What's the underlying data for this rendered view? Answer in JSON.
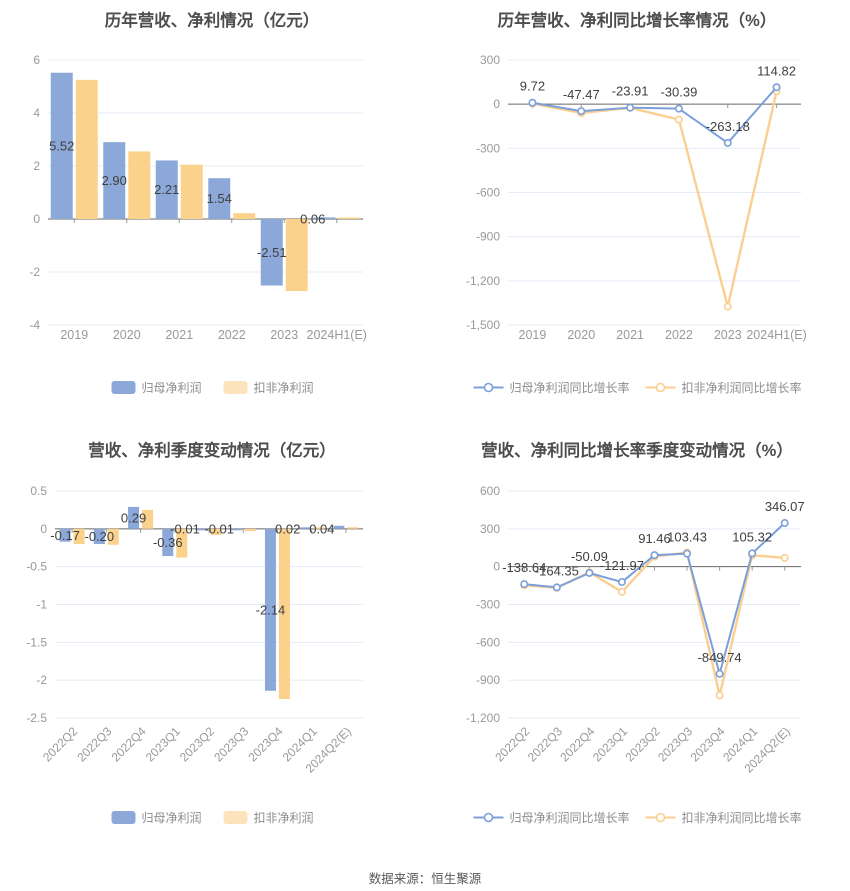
{
  "page": {
    "source_note": "数据来源：恒生聚源"
  },
  "colors": {
    "bar_blue": "#8CA8D8",
    "bar_yellow": "#FBD28C",
    "line_blue": "#7B9FDB",
    "line_yellow": "#FBCF90",
    "legend_swatch_yellow": "#FDE3BB",
    "grid": "#E5EBF6",
    "zero_axis": "#666666",
    "tick_mark": "#999999",
    "tick_text": "#999999",
    "value_text": "#404040",
    "title_text": "#4D4D4D",
    "legend_text": "#8C8C8C",
    "marker_fill": "#FFFFFF"
  },
  "chart_data": [
    {
      "type": "bar",
      "title": "历年营收、净利情况（亿元）",
      "categories": [
        "2019",
        "2020",
        "2021",
        "2022",
        "2023",
        "2024H1(E)"
      ],
      "series": [
        {
          "name": "归母净利润",
          "color_role": "bar_blue",
          "values": [
            5.52,
            2.9,
            2.21,
            1.54,
            -2.51,
            0.06
          ]
        },
        {
          "name": "扣非净利润",
          "color_role": "bar_yellow",
          "values": [
            5.25,
            2.55,
            2.05,
            0.22,
            -2.72,
            0.02
          ]
        }
      ],
      "value_labels": [
        "5.52",
        "2.90",
        "2.21",
        "1.54",
        "-2.51",
        "0.06"
      ],
      "ytick_values": [
        6,
        4,
        2,
        0,
        -2,
        -4
      ],
      "ytick_labels": [
        "6",
        "4",
        "2",
        "0",
        "-2",
        "-4"
      ],
      "ylim": [
        -4,
        6
      ],
      "x_rotated": false,
      "legend": {
        "style": "swatch",
        "items": [
          {
            "label": "归母净利润",
            "color_role": "bar_blue"
          },
          {
            "label": "扣非净利润",
            "color_role": "legend_swatch_yellow"
          }
        ]
      }
    },
    {
      "type": "line",
      "title": "历年营收、净利同比增长率情况（%）",
      "categories": [
        "2019",
        "2020",
        "2021",
        "2022",
        "2023",
        "2024H1(E)"
      ],
      "series": [
        {
          "name": "归母净利润同比增长率",
          "color_role": "line_blue",
          "values": [
            9.72,
            -47.47,
            -23.91,
            -30.39,
            -263.18,
            114.82
          ]
        },
        {
          "name": "扣非净利润同比增长率",
          "color_role": "line_yellow",
          "values": [
            4,
            -60,
            -25,
            -105,
            -1375,
            88
          ]
        }
      ],
      "value_labels": [
        "9.72",
        "-47.47",
        "-23.91",
        "-30.39",
        "-263.18",
        "114.82"
      ],
      "ytick_values": [
        300,
        0,
        -300,
        -600,
        -900,
        -1200,
        -1500
      ],
      "ytick_labels": [
        "300",
        "0",
        "-300",
        "-600",
        "-900",
        "-1,200",
        "-1,500"
      ],
      "ylim": [
        -1500,
        300
      ],
      "x_rotated": false,
      "legend": {
        "style": "line",
        "items": [
          {
            "label": "归母净利润同比增长率",
            "color_role": "line_blue"
          },
          {
            "label": "扣非净利润同比增长率",
            "color_role": "line_yellow"
          }
        ]
      }
    },
    {
      "type": "bar",
      "title": "营收、净利季度变动情况（亿元）",
      "categories": [
        "2022Q2",
        "2022Q3",
        "2022Q4",
        "2023Q1",
        "2023Q2",
        "2023Q3",
        "2023Q4",
        "2024Q1",
        "2024Q2(E)"
      ],
      "series": [
        {
          "name": "归母净利润",
          "color_role": "bar_blue",
          "values": [
            -0.17,
            -0.2,
            0.29,
            -0.36,
            -0.01,
            -0.01,
            -2.14,
            0.02,
            0.04
          ]
        },
        {
          "name": "扣非净利润",
          "color_role": "bar_yellow",
          "values": [
            -0.2,
            -0.21,
            0.25,
            -0.38,
            -0.08,
            -0.03,
            -2.25,
            0.02,
            0.02
          ]
        }
      ],
      "value_labels": [
        "-0.17",
        "-0.20",
        "0.29",
        "-0.36",
        "-0.01",
        "-0.01",
        "-2.14",
        "0.02",
        "0.04"
      ],
      "ytick_values": [
        0.5,
        0,
        -0.5,
        -1,
        -1.5,
        -2,
        -2.5
      ],
      "ytick_labels": [
        "0.5",
        "0",
        "-0.5",
        "-1",
        "-1.5",
        "-2",
        "-2.5"
      ],
      "ylim": [
        -2.5,
        0.5
      ],
      "x_rotated": true,
      "legend": {
        "style": "swatch",
        "items": [
          {
            "label": "归母净利润",
            "color_role": "bar_blue"
          },
          {
            "label": "扣非净利润",
            "color_role": "legend_swatch_yellow"
          }
        ]
      }
    },
    {
      "type": "line",
      "title": "营收、净利同比增长率季度变动情况（%）",
      "categories": [
        "2022Q2",
        "2022Q3",
        "2022Q4",
        "2023Q1",
        "2023Q2",
        "2023Q3",
        "2023Q4",
        "2024Q1",
        "2024Q2(E)"
      ],
      "series": [
        {
          "name": "归母净利润同比增长率",
          "color_role": "line_blue",
          "values": [
            -138.64,
            -164.35,
            -50.09,
            -121.97,
            91.46,
            103.43,
            -849.74,
            105.32,
            346.07
          ]
        },
        {
          "name": "扣非净利润同比增长率",
          "color_role": "line_yellow",
          "values": [
            -148,
            -168,
            -45,
            -200,
            80,
            112,
            -1020,
            90,
            70
          ]
        }
      ],
      "value_labels": [
        "-138.64",
        "-164.35",
        "-50.09",
        "-121.97",
        "91.46",
        "103.43",
        "-849.74",
        "105.32",
        "346.07"
      ],
      "ytick_values": [
        600,
        300,
        0,
        -300,
        -600,
        -900,
        -1200
      ],
      "ytick_labels": [
        "600",
        "300",
        "0",
        "-300",
        "-600",
        "-900",
        "-1,200"
      ],
      "ylim": [
        -1200,
        600
      ],
      "x_rotated": true,
      "legend": {
        "style": "line",
        "items": [
          {
            "label": "归母净利润同比增长率",
            "color_role": "line_blue"
          },
          {
            "label": "扣非净利润同比增长率",
            "color_role": "line_yellow"
          }
        ]
      }
    }
  ]
}
